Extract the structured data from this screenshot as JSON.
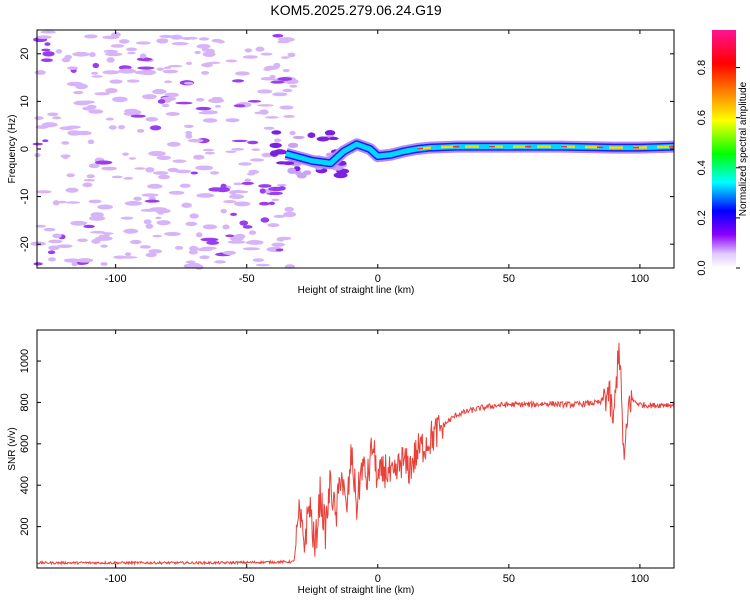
{
  "title": "KOM5.2025.279.06.24.G19",
  "colors": {
    "snr_line": "#e8413a",
    "frame": "#000000"
  },
  "chart_data": [
    {
      "type": "heatmap",
      "name": "spectrogram",
      "xlabel": "Height of straight line (km)",
      "ylabel": "Frequency (Hz)",
      "xlim": [
        -130,
        113
      ],
      "ylim": [
        -25,
        25
      ],
      "xticks": [
        -100,
        -50,
        0,
        50,
        100
      ],
      "yticks": [
        -20,
        -10,
        0,
        10,
        20
      ],
      "colorbar": {
        "label": "Normalized spectral amplitude",
        "range": [
          0,
          0.95
        ],
        "ticks": [
          0.0,
          0.2,
          0.4,
          0.6,
          0.8
        ],
        "colormap": [
          "#ffffff",
          "#8b00ff",
          "#0000ff",
          "#00ffff",
          "#00ff00",
          "#ffff00",
          "#ff8000",
          "#ff0000",
          "#ff00a0"
        ]
      },
      "ridge": [
        {
          "x": -35,
          "freq": -1.0
        },
        {
          "x": -25,
          "freq": -2.5
        },
        {
          "x": -18,
          "freq": -3.0
        },
        {
          "x": -13,
          "freq": -0.5
        },
        {
          "x": -8,
          "freq": 1.0
        },
        {
          "x": -3,
          "freq": 0.0
        },
        {
          "x": 0,
          "freq": -1.5
        },
        {
          "x": 5,
          "freq": -1.2
        },
        {
          "x": 10,
          "freq": -0.5
        },
        {
          "x": 15,
          "freq": 0.0
        },
        {
          "x": 20,
          "freq": 0.3
        },
        {
          "x": 30,
          "freq": 0.5
        },
        {
          "x": 50,
          "freq": 0.5
        },
        {
          "x": 70,
          "freq": 0.5
        },
        {
          "x": 90,
          "freq": 0.3
        },
        {
          "x": 100,
          "freq": 0.3
        },
        {
          "x": 113,
          "freq": 0.5
        }
      ]
    },
    {
      "type": "line",
      "name": "snr",
      "xlabel": "Height of straight line (km)",
      "ylabel": "SNR (v/v)",
      "xlim": [
        -130,
        113
      ],
      "ylim": [
        0,
        1150
      ],
      "xticks": [
        -100,
        -50,
        0,
        50,
        100
      ],
      "yticks": [
        200,
        400,
        600,
        800,
        1000
      ],
      "series": [
        {
          "name": "SNR",
          "x": [
            -130,
            -100,
            -60,
            -32,
            -30,
            -28,
            -26,
            -24,
            -22,
            -20,
            -18,
            -16,
            -14,
            -12,
            -10,
            -8,
            -6,
            -4,
            -2,
            0,
            3,
            6,
            9,
            12,
            15,
            18,
            22,
            26,
            30,
            35,
            40,
            45,
            50,
            55,
            60,
            65,
            70,
            75,
            80,
            85,
            88,
            90,
            92,
            94,
            96,
            100,
            105,
            110,
            113
          ],
          "y": [
            25,
            25,
            25,
            30,
            250,
            120,
            320,
            80,
            360,
            180,
            420,
            230,
            480,
            260,
            550,
            300,
            500,
            420,
            600,
            420,
            480,
            420,
            520,
            480,
            560,
            600,
            650,
            700,
            740,
            760,
            775,
            785,
            790,
            790,
            790,
            795,
            790,
            790,
            795,
            800,
            850,
            700,
            1100,
            500,
            820,
            790,
            785,
            790,
            785
          ]
        }
      ]
    }
  ]
}
